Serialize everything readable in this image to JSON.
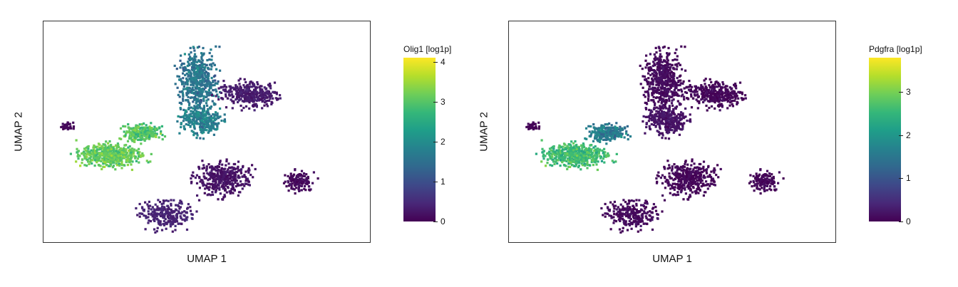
{
  "chart_data": [
    {
      "type": "scatter",
      "xlabel": "UMAP 1",
      "ylabel": "UMAP 2",
      "legend_title": "Olig1 [log1p]",
      "colorbar_ticks": [
        0,
        1,
        2,
        3,
        4
      ],
      "color_range": [
        0,
        4.1
      ],
      "colormap": "viridis",
      "legend_position": "right",
      "grid": false,
      "series_clusters": [
        {
          "x": -2.5,
          "y": -0.5,
          "level": 3.1
        },
        {
          "x": -1.5,
          "y": 0.2,
          "level": 3.0
        },
        {
          "x": 0.2,
          "y": 1.8,
          "level": 1.6
        },
        {
          "x": 0.3,
          "y": 0.6,
          "level": 1.8
        },
        {
          "x": 1.8,
          "y": 1.4,
          "level": 0.3
        },
        {
          "x": 1.0,
          "y": -1.2,
          "level": 0.2
        },
        {
          "x": 3.3,
          "y": -1.3,
          "level": 0.1
        },
        {
          "x": -0.8,
          "y": -2.3,
          "level": 0.4
        },
        {
          "x": -3.8,
          "y": 0.4,
          "level": 0.1
        }
      ]
    },
    {
      "type": "scatter",
      "xlabel": "UMAP 1",
      "ylabel": "UMAP 2",
      "legend_title": "Pdgfra [log1p]",
      "colorbar_ticks": [
        0,
        1,
        2,
        3
      ],
      "color_range": [
        0,
        3.8
      ],
      "colormap": "viridis",
      "legend_position": "right",
      "grid": false,
      "series_clusters": [
        {
          "x": -2.5,
          "y": -0.5,
          "level": 2.6
        },
        {
          "x": -1.5,
          "y": 0.2,
          "level": 1.6
        },
        {
          "x": 0.2,
          "y": 1.8,
          "level": 0.1
        },
        {
          "x": 0.3,
          "y": 0.6,
          "level": 0.2
        },
        {
          "x": 1.8,
          "y": 1.4,
          "level": 0.05
        },
        {
          "x": 1.0,
          "y": -1.2,
          "level": 0.05
        },
        {
          "x": 3.3,
          "y": -1.3,
          "level": 0.05
        },
        {
          "x": -0.8,
          "y": -2.3,
          "level": 0.1
        },
        {
          "x": -3.8,
          "y": 0.4,
          "level": 0.05
        }
      ]
    }
  ]
}
